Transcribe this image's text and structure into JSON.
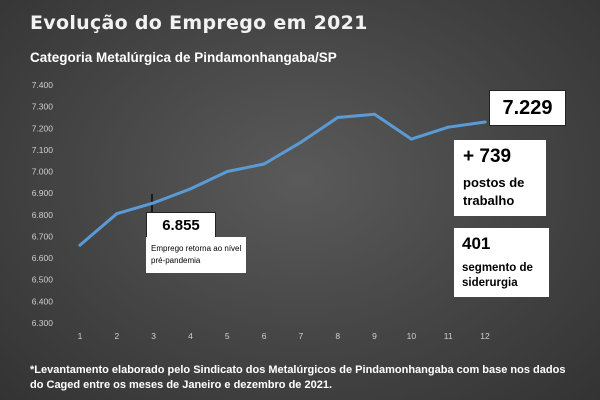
{
  "chart_data": {
    "type": "line",
    "title": "Evolução do Emprego em 2021",
    "subtitle": "Categoria Metalúrgica de Pindamonhangaba/SP",
    "xlabel": "",
    "ylabel": "",
    "categories": [
      "1",
      "2",
      "3",
      "4",
      "5",
      "6",
      "7",
      "8",
      "9",
      "10",
      "11",
      "12"
    ],
    "series": [
      {
        "values": [
          6660,
          6805,
          6855,
          6920,
          7000,
          7035,
          7135,
          7250,
          7265,
          7150,
          7205,
          7229
        ]
      }
    ],
    "ylim": [
      6300,
      7400
    ],
    "yticks": [
      "6.300",
      "6.400",
      "6.500",
      "6.600",
      "6.700",
      "6.800",
      "6.900",
      "7.000",
      "7.100",
      "7.200",
      "7.300",
      "7.400"
    ],
    "grid": false,
    "line_color": "#5b9bd5",
    "annotations": {
      "final_value": "7.229",
      "gain_value": "+ 739",
      "gain_label": "postos de trabalho",
      "steel_value": "401",
      "steel_label": "segmento de siderurgia",
      "prepandemic_value": "6.855",
      "prepandemic_label": "Emprego retorna ao nível pré-pandemia"
    },
    "footnote": "*Levantamento elaborado pelo Sindicato dos Metalúrgicos de Pindamonhangaba com base nos dados do Caged entre os meses de Janeiro e dezembro de 2021."
  }
}
